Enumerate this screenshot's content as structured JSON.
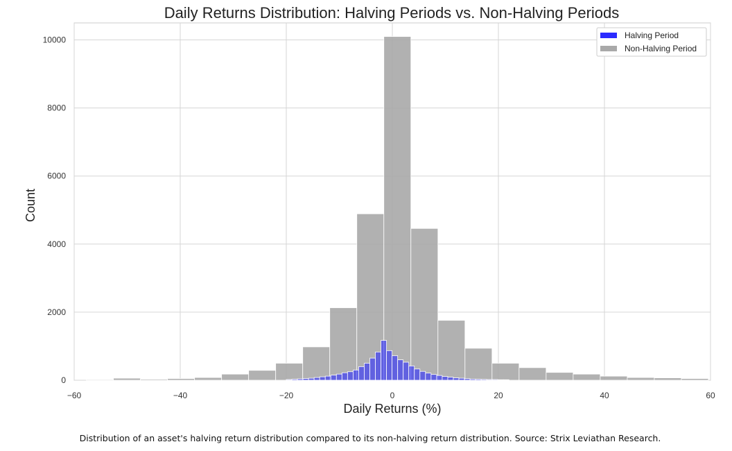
{
  "chart_data": {
    "type": "bar",
    "title": "Daily Returns Distribution: Halving Periods vs. Non-Halving Periods",
    "xlabel": "Daily Returns (%)",
    "ylabel": "Count",
    "xlim": [
      -60,
      60
    ],
    "ylim": [
      0,
      10500
    ],
    "xticks": [
      -60,
      -40,
      -20,
      0,
      20,
      40,
      60
    ],
    "xtick_labels": [
      "−60",
      "−40",
      "−20",
      "0",
      "20",
      "40",
      "60"
    ],
    "yticks": [
      0,
      2000,
      4000,
      6000,
      8000,
      10000
    ],
    "ytick_labels": [
      "0",
      "2000",
      "4000",
      "6000",
      "8000",
      "10000"
    ],
    "grid": true,
    "legend_position": "top-right",
    "series": [
      {
        "name": "Non-Halving Period",
        "color": "#a9a9a9",
        "bin_width": 5.1,
        "bins": [
          {
            "x0": -57.7,
            "count": 20
          },
          {
            "x0": -52.6,
            "count": 60
          },
          {
            "x0": -47.5,
            "count": 30
          },
          {
            "x0": -42.4,
            "count": 50
          },
          {
            "x0": -37.3,
            "count": 80
          },
          {
            "x0": -32.2,
            "count": 180
          },
          {
            "x0": -27.1,
            "count": 290
          },
          {
            "x0": -22.0,
            "count": 500
          },
          {
            "x0": -16.9,
            "count": 980
          },
          {
            "x0": -11.8,
            "count": 2130
          },
          {
            "x0": -6.7,
            "count": 4890
          },
          {
            "x0": -1.6,
            "count": 10100
          },
          {
            "x0": 3.5,
            "count": 4460
          },
          {
            "x0": 8.6,
            "count": 1760
          },
          {
            "x0": 13.7,
            "count": 940
          },
          {
            "x0": 18.8,
            "count": 500
          },
          {
            "x0": 23.9,
            "count": 370
          },
          {
            "x0": 29.0,
            "count": 230
          },
          {
            "x0": 34.1,
            "count": 180
          },
          {
            "x0": 39.2,
            "count": 120
          },
          {
            "x0": 44.3,
            "count": 80
          },
          {
            "x0": 49.4,
            "count": 70
          },
          {
            "x0": 54.5,
            "count": 50
          }
        ]
      },
      {
        "name": "Halving Period",
        "color": "#2b2bff",
        "bin_width": 1.05,
        "bins": [
          {
            "x0": -20.0,
            "count": 20
          },
          {
            "x0": -18.95,
            "count": 30
          },
          {
            "x0": -17.9,
            "count": 40
          },
          {
            "x0": -16.85,
            "count": 50
          },
          {
            "x0": -15.8,
            "count": 60
          },
          {
            "x0": -14.75,
            "count": 80
          },
          {
            "x0": -13.7,
            "count": 100
          },
          {
            "x0": -12.65,
            "count": 120
          },
          {
            "x0": -11.6,
            "count": 150
          },
          {
            "x0": -10.55,
            "count": 180
          },
          {
            "x0": -9.5,
            "count": 220
          },
          {
            "x0": -8.45,
            "count": 250
          },
          {
            "x0": -7.4,
            "count": 300
          },
          {
            "x0": -6.35,
            "count": 400
          },
          {
            "x0": -5.3,
            "count": 500
          },
          {
            "x0": -4.25,
            "count": 650
          },
          {
            "x0": -3.2,
            "count": 830
          },
          {
            "x0": -2.15,
            "count": 1170
          },
          {
            "x0": -1.1,
            "count": 870
          },
          {
            "x0": -0.05,
            "count": 720
          },
          {
            "x0": 1.0,
            "count": 600
          },
          {
            "x0": 2.05,
            "count": 530
          },
          {
            "x0": 3.1,
            "count": 420
          },
          {
            "x0": 4.15,
            "count": 330
          },
          {
            "x0": 5.2,
            "count": 260
          },
          {
            "x0": 6.25,
            "count": 210
          },
          {
            "x0": 7.3,
            "count": 170
          },
          {
            "x0": 8.35,
            "count": 140
          },
          {
            "x0": 9.4,
            "count": 110
          },
          {
            "x0": 10.45,
            "count": 90
          },
          {
            "x0": 11.5,
            "count": 70
          },
          {
            "x0": 12.55,
            "count": 60
          },
          {
            "x0": 13.6,
            "count": 45
          },
          {
            "x0": 14.65,
            "count": 35
          },
          {
            "x0": 15.7,
            "count": 30
          },
          {
            "x0": 16.75,
            "count": 25
          },
          {
            "x0": 17.8,
            "count": 20
          },
          {
            "x0": 18.85,
            "count": 20
          },
          {
            "x0": 19.9,
            "count": 15
          },
          {
            "x0": 20.95,
            "count": 15
          }
        ]
      }
    ]
  },
  "caption": "Distribution of an asset's halving return distribution compared to its non-halving return distribution. Source: Strix Leviathan Research."
}
